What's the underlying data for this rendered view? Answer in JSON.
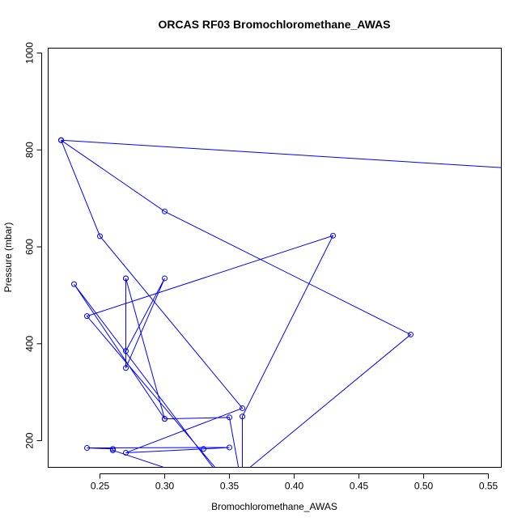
{
  "chart_data": {
    "type": "line",
    "title": "ORCAS RF03 Bromochloromethane_AWAS",
    "xlabel": "Bromochloromethane_AWAS",
    "ylabel": "Pressure (mbar)",
    "xlim": [
      0.21,
      0.56
    ],
    "ylim": [
      1010,
      145
    ],
    "y_reversed": true,
    "x_ticks": [
      0.25,
      0.3,
      0.35,
      0.4,
      0.45,
      0.5,
      0.55
    ],
    "x_tick_labels": [
      "0.25",
      "0.30",
      "0.35",
      "0.40",
      "0.45",
      "0.50",
      "0.55"
    ],
    "y_ticks": [
      200,
      400,
      600,
      800,
      1000
    ],
    "y_tick_labels": [
      "200",
      "400",
      "600",
      "800",
      "1000"
    ],
    "color": "#0000ff",
    "series": [
      {
        "x": [
          0.22,
          0.22,
          0.3,
          0.49,
          0.35,
          0.24,
          0.43,
          0.36,
          0.36,
          0.35,
          0.3,
          0.27,
          0.27,
          0.3,
          0.27,
          0.27,
          0.3,
          0.23,
          0.35,
          0.26,
          0.26,
          0.24,
          0.35,
          0.33,
          0.27,
          0.36,
          0.25,
          0.22
        ],
        "y": [
          820,
          820,
          673,
          419,
          110,
          457,
          623,
          250,
          100,
          248,
          245,
          535,
          385,
          535,
          350,
          535,
          245,
          523,
          100,
          180,
          183,
          185,
          186,
          183,
          175,
          267,
          622,
          820
        ],
        "wrap_to": [
          5,
          24
        ]
      }
    ]
  }
}
